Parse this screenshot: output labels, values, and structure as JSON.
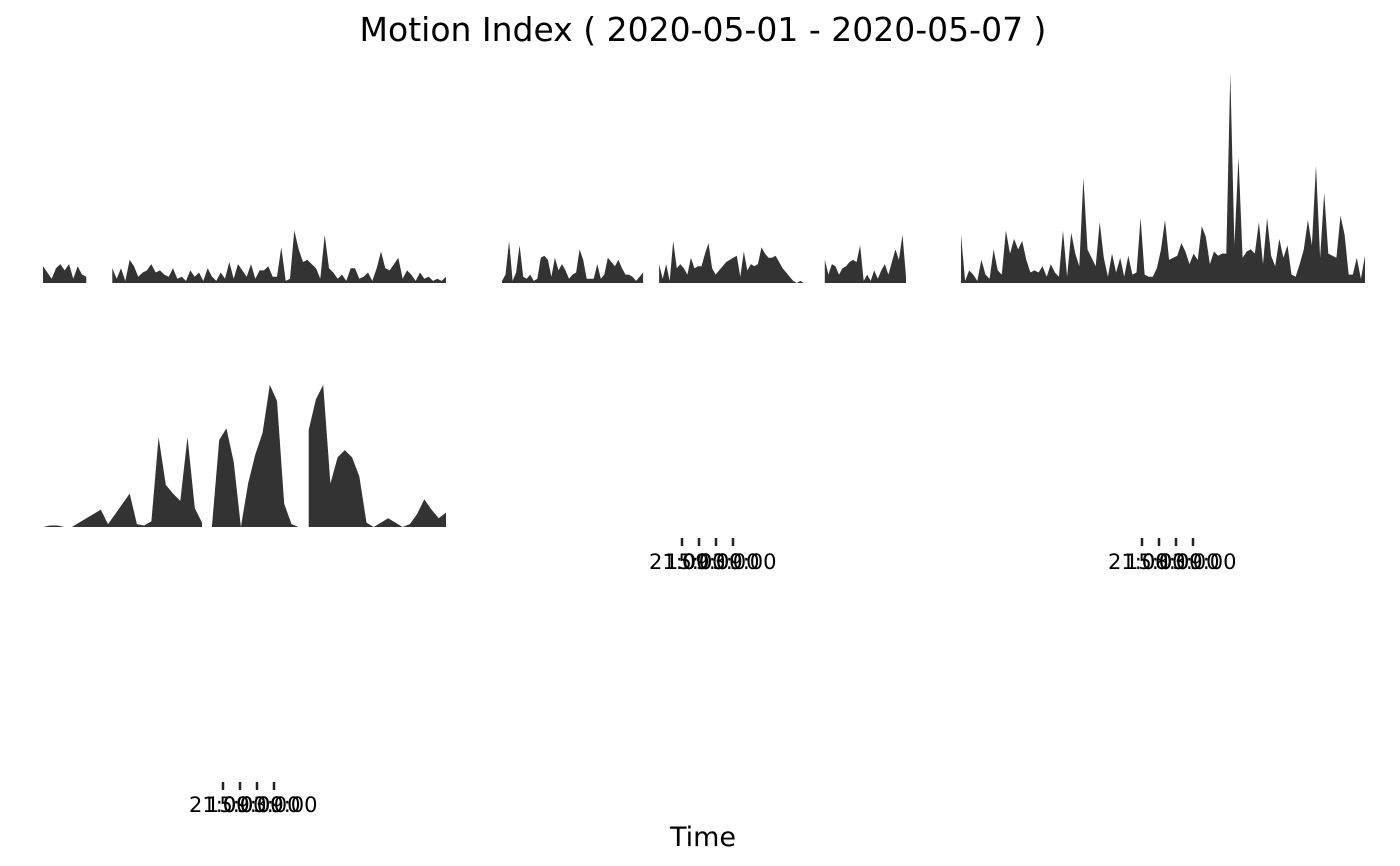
{
  "chart_data": {
    "type": "area",
    "title": "Motion Index ( 2020-05-01 - 2020-05-07 )",
    "xlabel": "Time",
    "ylabel": "",
    "fill_color": "#333333",
    "ylim": [
      0,
      1
    ],
    "panels": [
      {
        "name": "panel-1",
        "segments": [
          [
            0.08,
            0.05,
            0.02,
            0.07,
            0.09,
            0.06,
            0.09,
            0.02,
            0.08,
            0.04,
            0.03
          ],
          [
            0.07,
            0.02,
            0.07,
            0.01,
            0.11,
            0.08,
            0.03,
            0.05,
            0.06,
            0.09,
            0.05,
            0.06,
            0.04,
            0.03,
            0.07,
            0.02,
            0.03,
            0.01,
            0.06,
            0.03,
            0.05,
            0.01,
            0.07,
            0.03,
            0.01,
            0.05,
            0.02,
            0.1,
            0.02,
            0.09,
            0.06,
            0.03,
            0.09,
            0.02,
            0.06,
            0.06,
            0.08,
            0.03,
            0.03,
            0.17,
            0.01,
            0.02,
            0.25,
            0.16,
            0.1,
            0.11,
            0.09,
            0.07,
            0.02,
            0.23,
            0.07,
            0.05,
            0.02,
            0.04,
            0.01,
            0.07,
            0.07,
            0.02,
            0.03,
            0.05,
            0.01,
            0.07,
            0.15,
            0.07,
            0.06,
            0.09,
            0.12,
            0.02,
            0.06,
            0.04,
            0.01,
            0.05,
            0.02,
            0.03,
            0.01,
            0.02,
            0.01,
            0.03
          ]
        ]
      },
      {
        "name": "panel-2",
        "segments": [
          [
            0.01,
            0.04,
            0.2,
            0.01,
            0.05,
            0.18,
            0.03,
            0.02,
            0.04,
            0.01,
            0.02,
            0.12,
            0.13,
            0.11,
            0.03,
            0.12,
            0.06,
            0.09,
            0.06,
            0.02,
            0.04,
            0.05,
            0.16,
            0.11,
            0.02,
            0.02,
            0.02,
            0.09,
            0.02,
            0.04,
            0.12,
            0.1,
            0.08,
            0.11,
            0.07,
            0.04,
            0.04,
            0.03,
            0.01,
            0.03,
            0.05
          ],
          [
            0.09,
            0.02,
            0.09,
            0.01,
            0.2,
            0.07,
            0.09,
            0.07,
            0.04,
            0.12,
            0.07,
            0.08,
            0.08,
            0.14,
            0.19,
            0.07,
            0.04,
            0.06,
            0.08,
            0.1,
            0.11,
            0.12,
            0.13,
            0.03,
            0.15,
            0.06,
            0.09,
            0.08,
            0.09,
            0.17,
            0.14,
            0.12,
            0.12,
            0.13,
            0.1,
            0.07,
            0.05,
            0.03,
            0.01,
            0.0,
            0.01,
            0.0,
            0.0,
            0.0
          ],
          [
            0.11,
            0.04,
            0.09,
            0.08,
            0.04,
            0.07,
            0.08,
            0.1,
            0.11,
            0.1,
            0.18,
            0.01,
            0.04,
            0.01,
            0.06,
            0.02,
            0.06,
            0.09,
            0.04,
            0.1,
            0.16,
            0.11,
            0.23,
            0.03
          ]
        ]
      },
      {
        "name": "panel-3",
        "segments": [
          [
            0.23,
            0.01,
            0.06,
            0.04,
            0.01,
            0.11,
            0.04,
            0.02,
            0.16,
            0.06,
            0.04,
            0.25,
            0.14,
            0.21,
            0.16,
            0.2,
            0.11,
            0.05,
            0.06,
            0.05,
            0.08,
            0.03,
            0.09,
            0.05,
            0.03,
            0.25,
            0.03,
            0.24,
            0.14,
            0.08,
            0.5,
            0.16,
            0.12,
            0.08,
            0.29,
            0.12,
            0.03,
            0.14,
            0.05,
            0.12,
            0.03,
            0.13,
            0.04,
            0.05,
            0.31,
            0.04,
            0.03,
            0.03,
            0.07,
            0.16,
            0.3,
            0.11,
            0.12,
            0.13,
            0.19,
            0.15,
            0.09,
            0.14,
            0.11,
            0.27,
            0.22,
            0.09,
            0.15,
            0.13,
            0.14,
            0.14,
            1.0,
            0.18,
            0.6,
            0.12,
            0.15,
            0.16,
            0.14,
            0.29,
            0.09,
            0.31,
            0.13,
            0.08,
            0.21,
            0.12,
            0.18,
            0.04,
            0.03,
            0.09,
            0.16,
            0.3,
            0.18,
            0.56,
            0.12,
            0.43,
            0.14,
            0.13,
            0.12,
            0.32,
            0.23,
            0.04,
            0.04,
            0.12,
            0.02,
            0.13
          ]
        ]
      },
      {
        "name": "panel-4",
        "segments": [
          [
            0.0,
            0.01,
            0.01,
            0.0,
            0.0,
            0.03,
            0.06,
            0.09,
            0.12,
            0.02,
            0.09,
            0.16,
            0.23,
            0.02,
            0.01,
            0.04,
            0.62,
            0.29,
            0.23,
            0.18,
            0.62,
            0.13,
            0.03
          ],
          [
            0.01,
            0.6,
            0.68,
            0.45,
            0.0,
            0.3,
            0.5,
            0.65,
            0.98,
            0.87,
            0.16,
            0.02,
            0.0
          ],
          [
            0.67,
            0.88,
            0.98,
            0.3,
            0.48,
            0.53,
            0.48,
            0.35,
            0.03,
            0.0,
            0.03,
            0.06,
            0.03,
            0.0,
            0.02,
            0.09,
            0.19,
            0.12,
            0.06,
            0.1
          ]
        ]
      }
    ],
    "tick_groups": [
      {
        "name": "panel-5-ticks",
        "labels": [
          "21:00",
          "15:00",
          "09:00",
          "03:00",
          "09:00"
        ]
      },
      {
        "name": "panel-6-ticks",
        "labels": [
          "21:00",
          "15:00",
          "08:00",
          "03:00",
          "09:00"
        ]
      },
      {
        "name": "panel-7-ticks",
        "labels": [
          "21:00",
          "15:00",
          "09:00",
          "03:00",
          "09:00"
        ]
      }
    ]
  }
}
